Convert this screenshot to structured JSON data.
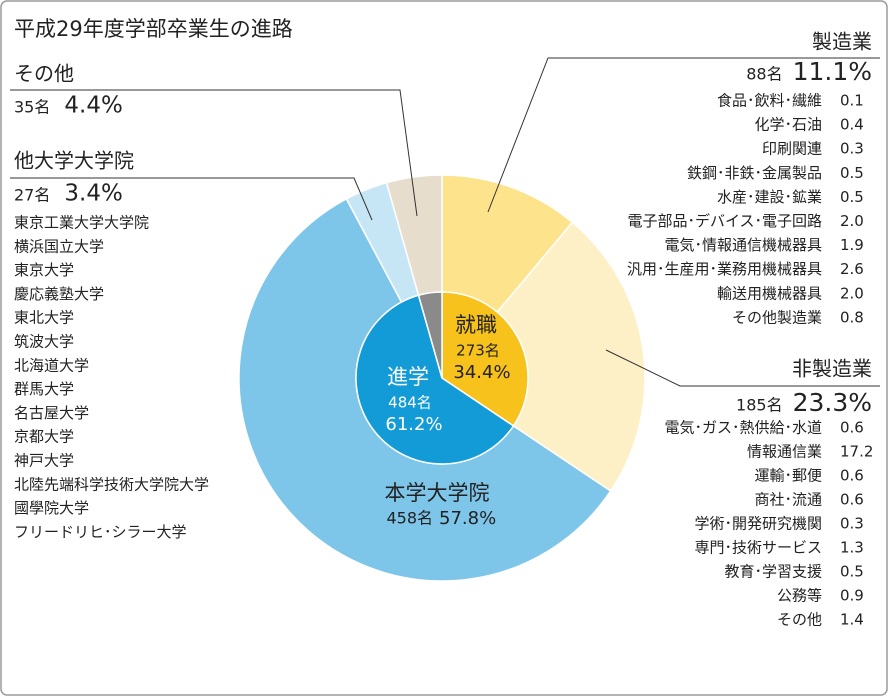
{
  "chart_data": {
    "type": "donut",
    "title": "平成29年度学部卒業生の進路",
    "inner": [
      {
        "name": "就職",
        "count": 273,
        "count_label": "273名",
        "value": 34.4,
        "value_label": "34.4%",
        "color": "#f7c21b"
      },
      {
        "name": "進学",
        "count": 484,
        "count_label": "484名",
        "value": 61.2,
        "value_label": "61.2%",
        "color": "#129bd6"
      },
      {
        "value": 4.4,
        "color": "#8a8a8a"
      }
    ],
    "outer": [
      {
        "name": "製造業",
        "count": 88,
        "count_label": "88名",
        "value": 11.1,
        "value_label": "11.1%",
        "color": "#fde48c",
        "breakdown": [
          {
            "name": "食品･飲料･繊維",
            "value": 0.1
          },
          {
            "name": "化学･石油",
            "value": 0.4
          },
          {
            "name": "印刷関連",
            "value": 0.3
          },
          {
            "name": "鉄鋼･非鉄･金属製品",
            "value": 0.5
          },
          {
            "name": "水産･建設･鉱業",
            "value": 0.5
          },
          {
            "name": "電子部品･デバイス･電子回路",
            "value": 2,
            "value_label": "2.0"
          },
          {
            "name": "電気･情報通信機械器具",
            "value": 1.9
          },
          {
            "name": "汎用･生産用･業務用機械器具",
            "value": 2.6
          },
          {
            "name": "輸送用機械器具",
            "value": 2,
            "value_label": "2.0"
          },
          {
            "name": "その他製造業",
            "value": 0.8
          }
        ]
      },
      {
        "name": "非製造業",
        "count": 185,
        "count_label": "185名",
        "value": 23.3,
        "value_label": "23.3%",
        "color": "#fdf0c6",
        "breakdown": [
          {
            "name": "電気･ガス･熱供給･水道",
            "value": 0.6
          },
          {
            "name": "情報通信業",
            "value": 17.2
          },
          {
            "name": "運輸･郵便",
            "value": 0.6
          },
          {
            "name": "商社･流通",
            "value": 0.6
          },
          {
            "name": "学術･開発研究機関",
            "value": 0.3
          },
          {
            "name": "専門･技術サービス",
            "value": 1.3
          },
          {
            "name": "教育･学習支援",
            "value": 0.5
          },
          {
            "name": "公務等",
            "value": 0.9
          },
          {
            "name": "その他",
            "value": 1.4
          }
        ]
      },
      {
        "name": "本学大学院",
        "count": 458,
        "count_label": "458名",
        "value": 57.8,
        "value_label": "57.8%",
        "color": "#7dc5e9"
      },
      {
        "name": "他大学大学院",
        "count": 27,
        "count_label": "27名",
        "value": 3.4,
        "value_label": "3.4%",
        "color": "#c6e6f6",
        "schools": [
          "東京工業大学大学院",
          "横浜国立大学",
          "東京大学",
          "慶応義塾大学",
          "東北大学",
          "筑波大学",
          "北海道大学",
          "群馬大学",
          "名古屋大学",
          "京都大学",
          "神戸大学",
          "北陸先端科学技術大学院大学",
          "國學院大学",
          "フリードリヒ･シラー大学"
        ]
      },
      {
        "name": "その他",
        "count": 35,
        "count_label": "35名",
        "value": 4.4,
        "value_label": "4.4%",
        "color": "#e7ddcc"
      }
    ]
  }
}
